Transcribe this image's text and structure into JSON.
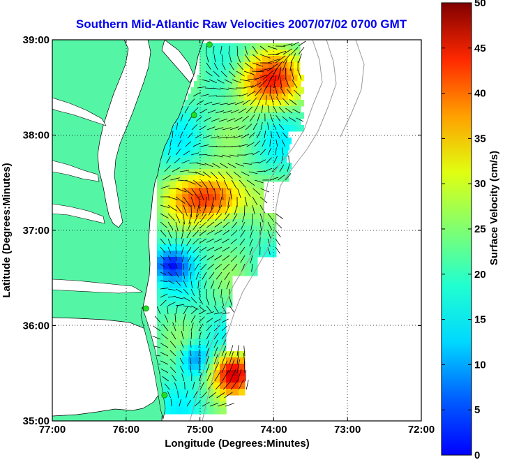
{
  "title": "Southern Mid-Atlantic Raw Velocities 2007/07/02 0700 GMT",
  "x_axis": {
    "label": "Longitude (Degrees:Minutes)",
    "ticks": [
      "77:00",
      "76:00",
      "75:00",
      "74:00",
      "73:00",
      "72:00"
    ],
    "range": [
      -77,
      -72
    ]
  },
  "y_axis": {
    "label": "Latitude (Degrees:Minutes)",
    "ticks": [
      "35:00",
      "36:00",
      "37:00",
      "38:00",
      "39:00"
    ],
    "range": [
      35,
      39
    ]
  },
  "colorbar": {
    "label": "Surface Velocity (cm/s)",
    "ticks": [
      "0",
      "5",
      "10",
      "15",
      "20",
      "25",
      "30",
      "35",
      "40",
      "45",
      "50"
    ],
    "range": [
      0,
      50
    ],
    "colormap": "jet"
  },
  "grid": "dotted",
  "colors": {
    "land": "#55f5a6",
    "water": "#ffffff",
    "title": "#0000ee",
    "vectors": "#000000",
    "isobath": "#999999",
    "stations": "#22dd22"
  },
  "stations": [
    {
      "lon": -74.87,
      "lat": 38.95
    },
    {
      "lon": -75.08,
      "lat": 38.21
    },
    {
      "lon": -75.73,
      "lat": 36.18
    },
    {
      "lon": -75.48,
      "lat": 35.27
    }
  ]
}
